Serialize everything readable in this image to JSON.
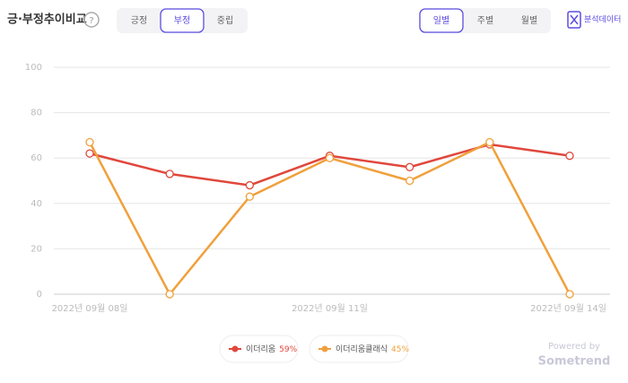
{
  "header": {
    "title": "긍·부정추이비교",
    "help": "?",
    "sentiment_tabs": [
      "긍정",
      "부정",
      "중립"
    ],
    "sentiment_selected": 1,
    "period_tabs": [
      "일별",
      "주별",
      "월별"
    ],
    "period_selected": 0,
    "export": "분석데이터"
  },
  "chart_data": {
    "type": "line",
    "categories": [
      "2022년 09월 08일",
      null,
      null,
      "2022년 09월 11일",
      null,
      null,
      "2022년 09월 14일"
    ],
    "series": [
      {
        "name": "이더리움",
        "color": "#e0473c",
        "values": [
          62,
          53,
          48,
          61,
          56,
          66,
          61
        ],
        "share": 59,
        "share_label": "59%"
      },
      {
        "name": "이더리움클래식",
        "color": "#f0a03c",
        "values": [
          67,
          0,
          43,
          60,
          50,
          67,
          0
        ],
        "share": 45,
        "share_label": "45%"
      }
    ],
    "ylim": [
      0,
      100
    ],
    "yticks": [
      0,
      20,
      40,
      60,
      80,
      100
    ],
    "grid": true
  },
  "footer": {
    "powered": "Powered by",
    "brand": "Sometrend"
  }
}
